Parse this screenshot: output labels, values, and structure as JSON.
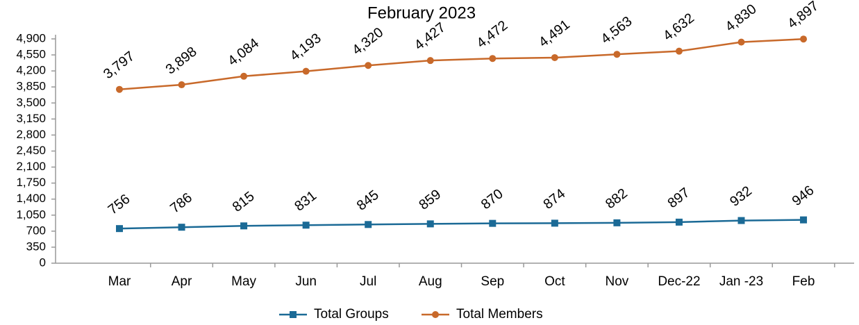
{
  "chart_data": {
    "type": "line",
    "title": "February 2023",
    "categories": [
      "Mar",
      "Apr",
      "May",
      "Jun",
      "Jul",
      "Aug",
      "Sep",
      "Oct",
      "Nov",
      "Dec-22",
      "Jan -23",
      "Feb"
    ],
    "series": [
      {
        "name": "Total Groups",
        "color": "#1b6a96",
        "marker": "square",
        "values": [
          756,
          786,
          815,
          831,
          845,
          859,
          870,
          874,
          882,
          897,
          932,
          946
        ]
      },
      {
        "name": "Total Members",
        "color": "#c8692a",
        "marker": "circle",
        "values": [
          3797,
          3898,
          4084,
          4193,
          4320,
          4427,
          4472,
          4491,
          4563,
          4632,
          4830,
          4897
        ],
        "value_labels": [
          "3,797",
          "3,898",
          "4,084",
          "4,193",
          "4,320",
          "4,427",
          "4,472",
          "4,491",
          "4,563",
          "4,632",
          "4,830",
          "4,897"
        ]
      }
    ],
    "ylim": [
      0,
      4900
    ],
    "yticks": [
      0,
      350,
      700,
      {
        "value": 1050,
        "label": "1,050"
      },
      {
        "value": 1400,
        "label": "1,400"
      },
      {
        "value": 1750,
        "label": "1,750"
      },
      {
        "value": 2100,
        "label": "2,100"
      },
      {
        "value": 2450,
        "label": "2,450"
      },
      {
        "value": 2800,
        "label": "2,800"
      },
      {
        "value": 3150,
        "label": "3,150"
      },
      {
        "value": 3500,
        "label": "3,500"
      },
      {
        "value": 3850,
        "label": "3,850"
      },
      {
        "value": 4200,
        "label": "4,200"
      },
      {
        "value": 4550,
        "label": "4,550"
      },
      {
        "value": 4900,
        "label": "4,900"
      }
    ],
    "grid": false,
    "legend": "bottom"
  }
}
